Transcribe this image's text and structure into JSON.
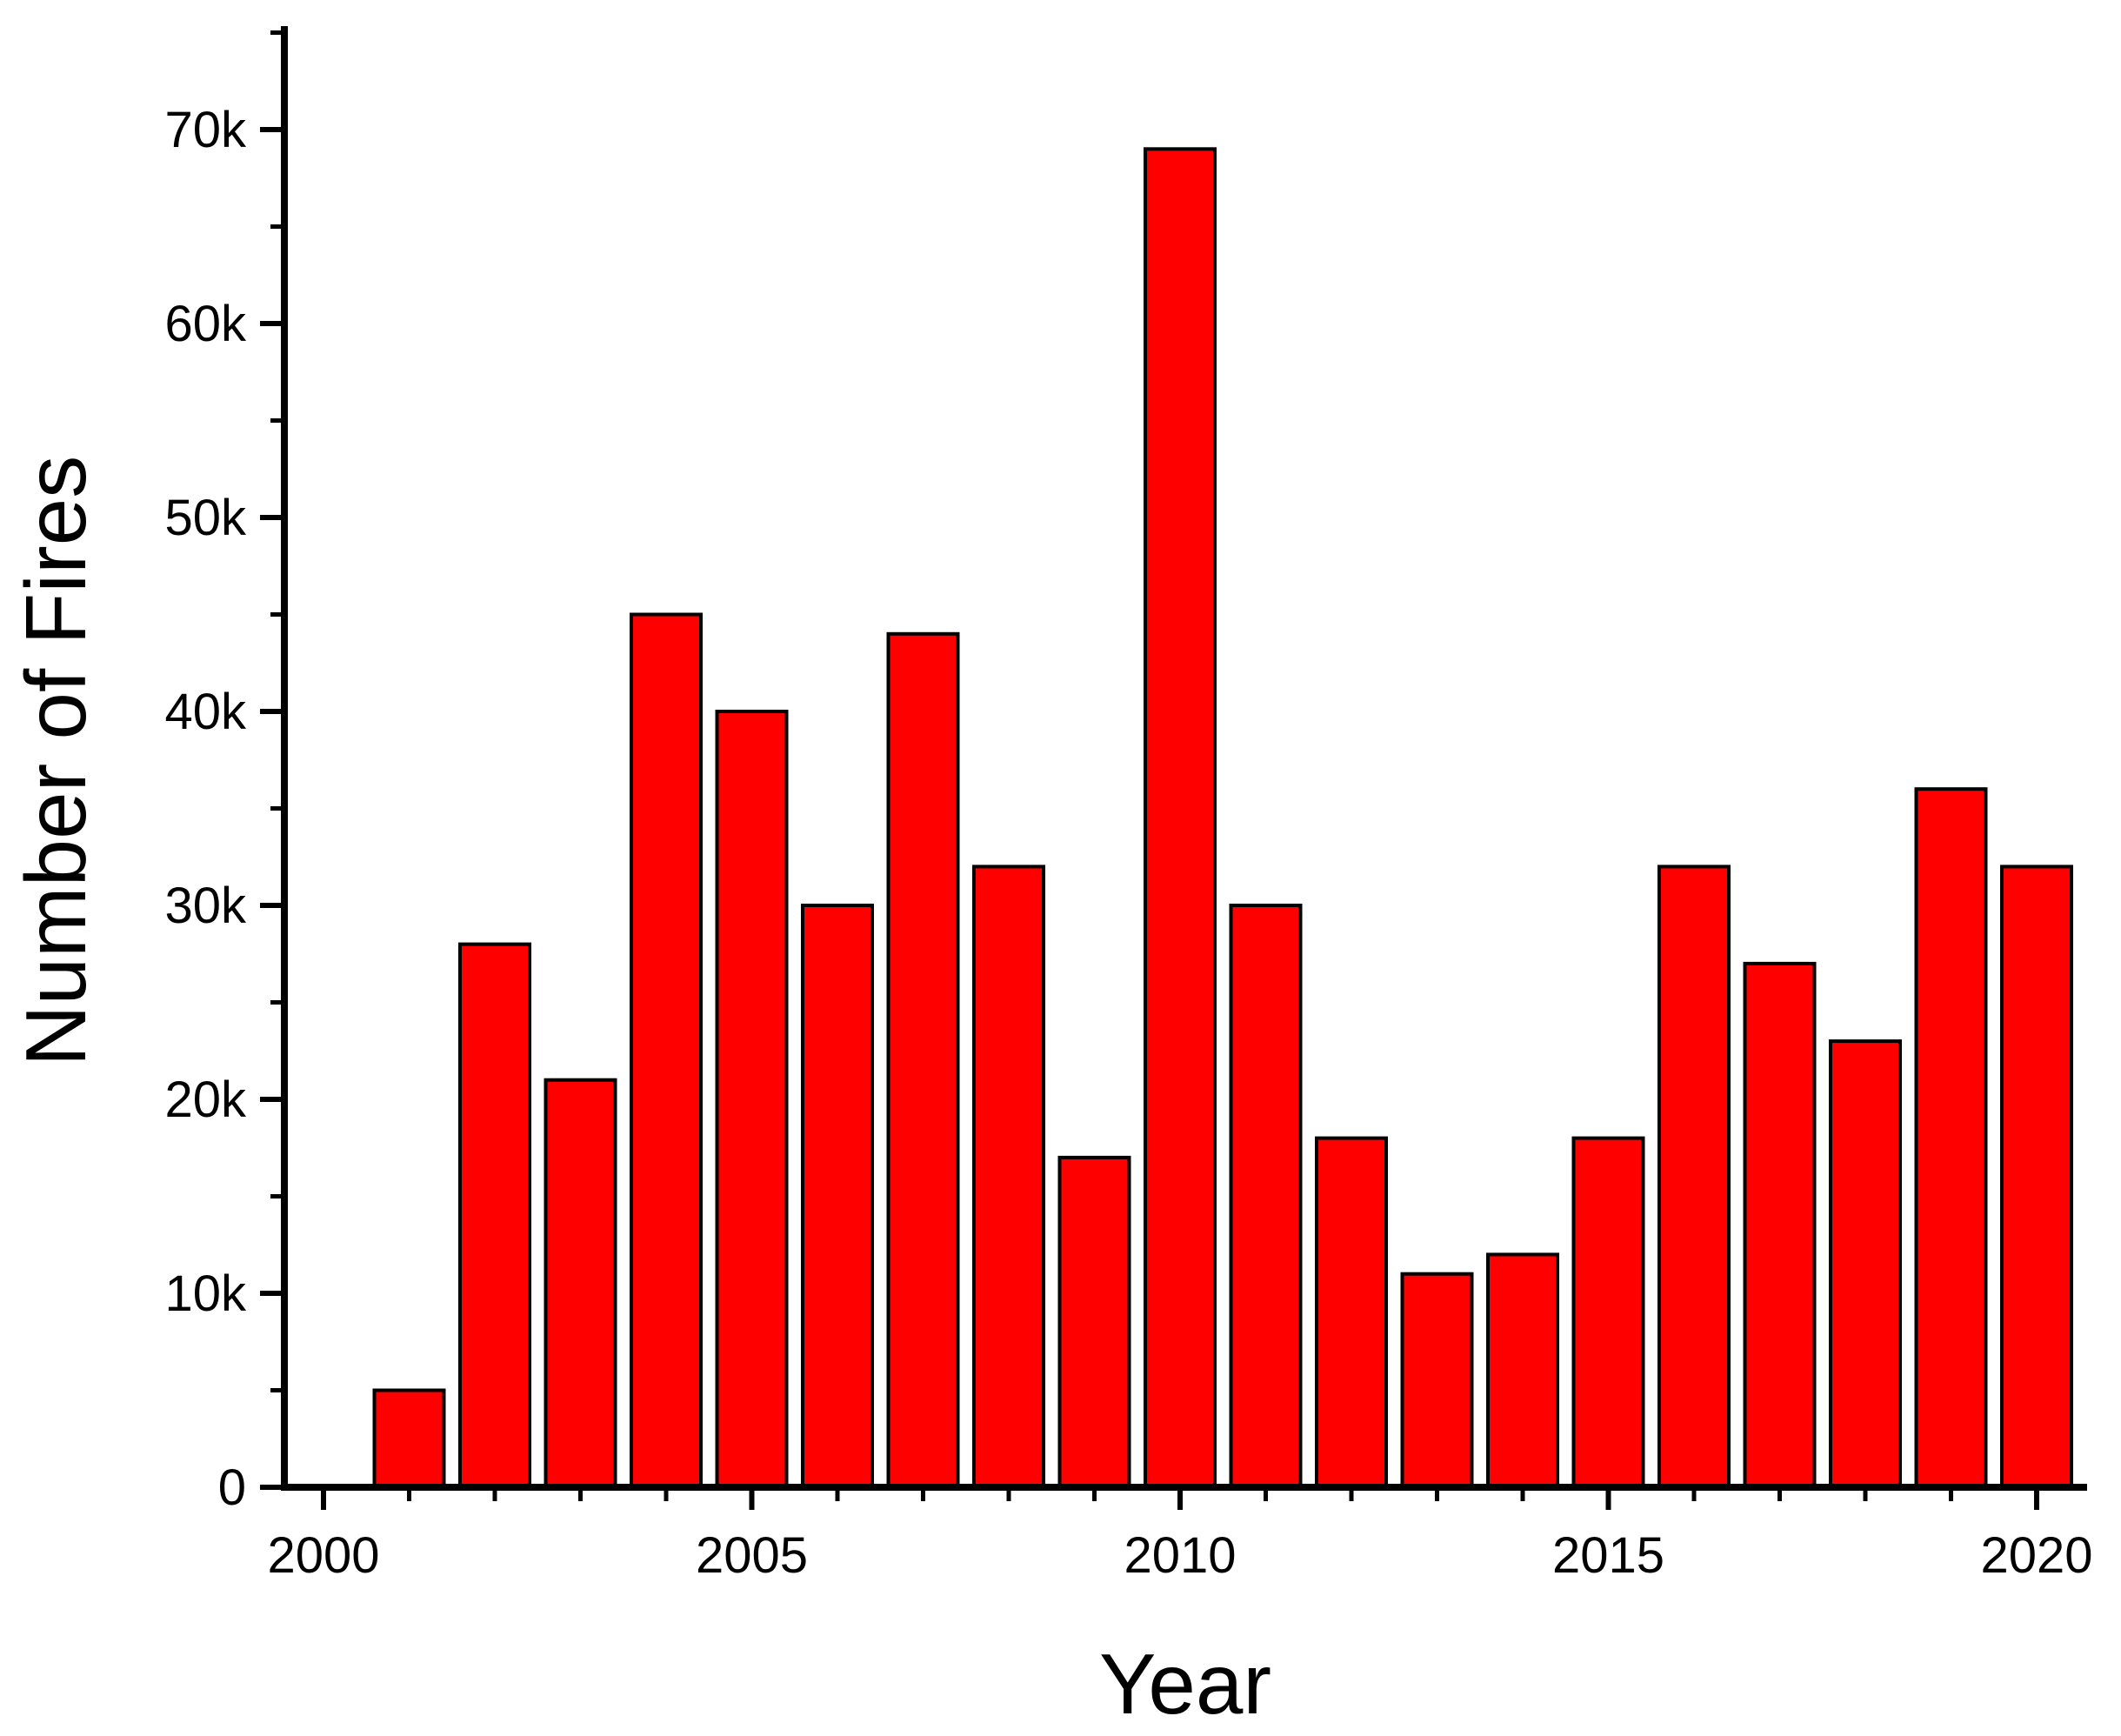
{
  "chart_data": {
    "type": "bar",
    "title": "",
    "xlabel": "Year",
    "ylabel": "Number of Fires",
    "categories": [
      "2001",
      "2002",
      "2003",
      "2004",
      "2005",
      "2006",
      "2007",
      "2008",
      "2009",
      "2010",
      "2011",
      "2012",
      "2013",
      "2014",
      "2015",
      "2016",
      "2017",
      "2018",
      "2019",
      "2020"
    ],
    "values": [
      5000,
      28000,
      21000,
      45000,
      40000,
      30000,
      44000,
      32000,
      17000,
      69000,
      30000,
      18000,
      11000,
      12000,
      18000,
      32000,
      27000,
      23000,
      36000,
      32000
    ],
    "xlim": [
      1999.5,
      2020.5
    ],
    "ylim": [
      0,
      75000
    ],
    "x_ticks": [
      2000,
      2005,
      2010,
      2015,
      2020
    ],
    "x_tick_labels": [
      "2000",
      "2005",
      "2010",
      "2015",
      "2020"
    ],
    "y_ticks": [
      0,
      10000,
      20000,
      30000,
      40000,
      50000,
      60000,
      70000
    ],
    "y_tick_labels": [
      "0",
      "10k",
      "20k",
      "30k",
      "40k",
      "50k",
      "60k",
      "70k"
    ],
    "bar_color": "#ff0000",
    "edge_color": "#000000",
    "grid": false,
    "legend": "none"
  }
}
